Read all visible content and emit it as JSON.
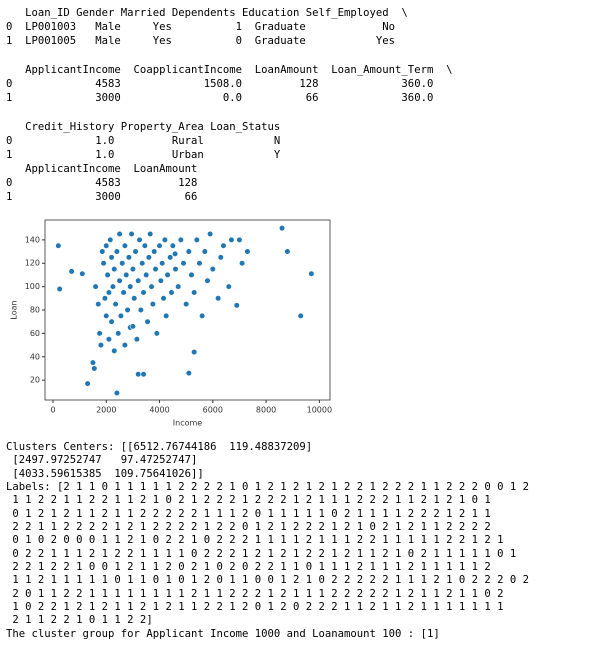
{
  "output_top": [
    "   Loan_ID Gender Married Dependents Education Self_Employed  \\",
    "0  LP001003   Male     Yes          1  Graduate            No",
    "1  LP001005   Male     Yes          0  Graduate           Yes",
    "",
    "   ApplicantIncome  CoapplicantIncome  LoanAmount  Loan_Amount_Term  \\",
    "0             4583             1508.0         128             360.0",
    "1             3000                0.0          66             360.0",
    "",
    "   Credit_History Property_Area Loan_Status",
    "0             1.0         Rural           N",
    "1             1.0         Urban           Y",
    "   ApplicantIncome  LoanAmount",
    "0             4583         128",
    "1             3000          66"
  ],
  "chart_data": {
    "type": "scatter",
    "x_label": "Income",
    "y_label": "Loan",
    "color": "#1f77b4",
    "xlim": [
      -300,
      10400
    ],
    "ylim": [
      3,
      157
    ],
    "xticks": [
      0,
      2000,
      4000,
      6000,
      8000,
      10000
    ],
    "yticks": [
      20,
      40,
      60,
      80,
      100,
      120,
      140
    ],
    "x": [
      200,
      250,
      700,
      1100,
      1300,
      1500,
      1550,
      1600,
      1700,
      1750,
      1800,
      1850,
      1900,
      1950,
      2000,
      2000,
      2050,
      2100,
      2100,
      2150,
      2200,
      2200,
      2250,
      2300,
      2300,
      2350,
      2400,
      2400,
      2450,
      2500,
      2500,
      2550,
      2600,
      2650,
      2700,
      2700,
      2750,
      2800,
      2850,
      2900,
      2900,
      2950,
      3000,
      3000,
      3050,
      3100,
      3150,
      3200,
      3200,
      3250,
      3300,
      3350,
      3400,
      3400,
      3450,
      3500,
      3550,
      3600,
      3650,
      3700,
      3750,
      3800,
      3850,
      3900,
      4000,
      4050,
      4100,
      4150,
      4200,
      4250,
      4300,
      4400,
      4450,
      4500,
      4583,
      4600,
      4700,
      4800,
      4900,
      5000,
      5100,
      5100,
      5200,
      5300,
      5300,
      5400,
      5500,
      5600,
      5700,
      5800,
      5900,
      6000,
      6200,
      6300,
      6400,
      6600,
      6700,
      6900,
      7000,
      7100,
      7300,
      8600,
      8800,
      9300,
      9700
    ],
    "y": [
      135,
      98,
      113,
      111,
      17,
      35,
      30,
      100,
      85,
      60,
      50,
      130,
      120,
      90,
      135,
      75,
      110,
      55,
      95,
      140,
      125,
      70,
      100,
      45,
      115,
      85,
      9,
      130,
      60,
      105,
      145,
      75,
      120,
      95,
      50,
      135,
      110,
      80,
      125,
      65,
      100,
      145,
      66,
      115,
      90,
      130,
      55,
      25,
      105,
      140,
      80,
      120,
      25,
      95,
      135,
      110,
      70,
      125,
      145,
      100,
      85,
      130,
      115,
      60,
      135,
      105,
      120,
      90,
      140,
      75,
      110,
      125,
      95,
      135,
      128,
      115,
      100,
      140,
      120,
      85,
      26,
      130,
      110,
      44,
      95,
      140,
      120,
      75,
      130,
      105,
      145,
      115,
      90,
      125,
      135,
      100,
      140,
      84,
      140,
      120,
      130,
      150,
      130,
      75,
      111
    ]
  },
  "output_bottom": [
    "Clusters Centers: [[6512.76744186  119.48837209]",
    " [2497.97252747   97.47252747]",
    " [4033.59615385  109.75641026]]",
    "Labels: [2 1 1 0 1 1 1 1 1 2 2 2 2 1 0 1 2 1 2 1 2 1 2 2 1 2 2 2 1 1 2 2 2 0 0 1 2",
    " 1 1 2 2 1 1 2 2 1 1 2 1 0 2 1 2 2 2 1 2 2 2 1 2 1 1 1 2 2 2 1 1 2 1 2 1 0 1",
    " 0 1 2 1 2 1 1 2 1 1 2 2 2 2 2 1 1 1 2 0 1 1 1 1 1 0 2 1 1 1 1 2 2 2 1 2 1 1",
    " 2 2 1 1 2 2 2 2 1 2 1 2 2 2 2 1 2 2 0 1 2 1 2 2 2 1 2 1 0 2 1 2 1 1 2 2 2 2",
    " 0 1 0 2 0 0 0 1 1 2 1 0 2 2 1 0 2 2 2 1 1 1 1 2 1 1 1 2 2 1 1 1 1 1 2 2 1 2 1",
    " 0 2 2 1 1 1 2 1 2 2 1 1 1 1 0 2 2 2 1 2 1 2 1 2 2 1 2 1 1 2 1 0 2 1 1 1 1 1 0 1",
    " 2 2 1 2 2 1 0 0 1 2 1 1 2 0 2 1 0 2 0 2 2 1 1 0 1 1 1 2 1 1 1 2 1 1 1 1 1 2",
    " 1 1 2 1 1 1 1 1 0 1 1 0 1 0 1 2 0 1 1 0 0 1 2 1 0 2 2 2 2 2 1 1 1 2 1 0 2 2 2 0 2",
    " 2 0 1 1 2 2 1 1 1 1 1 1 1 1 2 1 1 2 2 2 1 2 1 1 1 2 2 2 2 2 1 2 1 1 2 1 1 0 2",
    " 1 0 2 2 1 2 1 2 1 1 2 1 2 1 1 2 2 1 2 0 1 2 0 2 2 2 1 1 2 1 1 2 1 1 1 1 1 1 1",
    " 2 1 1 2 2 1 0 1 1 2 2]",
    "The cluster group for Applicant Income 1000 and Loanamount 100 : [1]"
  ]
}
